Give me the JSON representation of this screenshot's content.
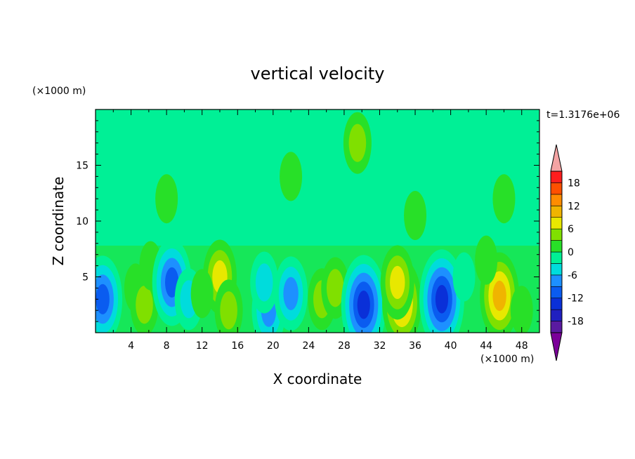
{
  "chart_data": {
    "type": "heatmap",
    "title": "vertical velocity",
    "xlabel": "X coordinate",
    "ylabel": "Z coordinate",
    "x_unit": "(×1000 m)",
    "y_unit": "(×1000 m)",
    "time_label": "t=1.3176e+06",
    "xlim": [
      0,
      50
    ],
    "ylim": [
      0,
      20
    ],
    "x_ticks": [
      4,
      8,
      12,
      16,
      20,
      24,
      28,
      32,
      36,
      40,
      44,
      48
    ],
    "y_ticks": [
      5,
      10,
      15
    ],
    "colorbar": {
      "levels": [
        -21,
        -18,
        -15,
        -12,
        -9,
        -6,
        -3,
        0,
        3,
        6,
        9,
        12,
        15,
        18,
        21
      ],
      "tick_labels": [
        18,
        12,
        6,
        0,
        -6,
        -12,
        -18
      ],
      "colors": [
        "#7b0099",
        "#5a1aa0",
        "#2020c0",
        "#0a30d8",
        "#0a5cf0",
        "#1d90ff",
        "#00dcdc",
        "#00f096",
        "#28e028",
        "#80e000",
        "#e8e800",
        "#f0b400",
        "#ff8c00",
        "#ff5000",
        "#ff1e1e",
        "#f4a4a4"
      ],
      "extend": "both"
    },
    "cells": [
      {
        "x": 0.8,
        "z": 3.0,
        "w": -11
      },
      {
        "x": 4.5,
        "z": 4.0,
        "w": 3
      },
      {
        "x": 5.5,
        "z": 2.5,
        "w": 5
      },
      {
        "x": 6.2,
        "z": 6.0,
        "w": 4
      },
      {
        "x": 8.6,
        "z": 4.5,
        "w": -13
      },
      {
        "x": 10.5,
        "z": 3.0,
        "w": -5
      },
      {
        "x": 14.0,
        "z": 5.0,
        "w": 10
      },
      {
        "x": 15.0,
        "z": 2.0,
        "w": 6
      },
      {
        "x": 12.0,
        "z": 3.5,
        "w": 4
      },
      {
        "x": 19.5,
        "z": 2.0,
        "w": -10
      },
      {
        "x": 19.0,
        "z": 4.5,
        "w": -6
      },
      {
        "x": 22.0,
        "z": 3.5,
        "w": -9
      },
      {
        "x": 25.5,
        "z": 3.0,
        "w": 7
      },
      {
        "x": 27.0,
        "z": 4.0,
        "w": 5
      },
      {
        "x": 30.2,
        "z": 2.5,
        "w": -14
      },
      {
        "x": 34.5,
        "z": 2.7,
        "w": 13
      },
      {
        "x": 34.0,
        "z": 4.5,
        "w": 8
      },
      {
        "x": 39.0,
        "z": 3.0,
        "w": -16
      },
      {
        "x": 41.5,
        "z": 5.0,
        "w": -4
      },
      {
        "x": 45.5,
        "z": 3.3,
        "w": 12
      },
      {
        "x": 48.0,
        "z": 2.0,
        "w": 3
      },
      {
        "x": 44.0,
        "z": 6.5,
        "w": 2
      },
      {
        "x": 8.0,
        "z": 12.0,
        "w": 2
      },
      {
        "x": 22.0,
        "z": 14.0,
        "w": 4
      },
      {
        "x": 29.5,
        "z": 17.0,
        "w": 5
      },
      {
        "x": 36.0,
        "z": 10.5,
        "w": 2
      },
      {
        "x": 46.0,
        "z": 12.0,
        "w": 2
      }
    ]
  }
}
